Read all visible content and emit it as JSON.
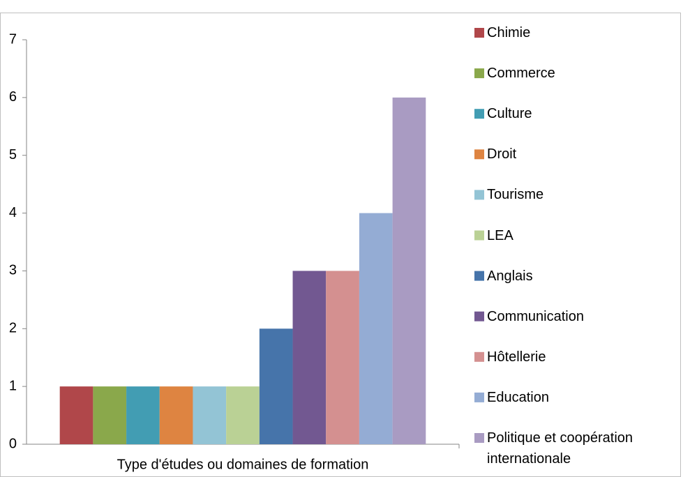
{
  "chart_data": {
    "type": "bar",
    "categories": [
      "Type d'études ou domaines de formation"
    ],
    "series": [
      {
        "name": "Chimie",
        "color": "#b0474a",
        "values": [
          1
        ]
      },
      {
        "name": "Commerce",
        "color": "#8aa84b",
        "values": [
          1
        ]
      },
      {
        "name": "Culture",
        "color": "#429db3",
        "values": [
          1
        ]
      },
      {
        "name": "Droit",
        "color": "#de8441",
        "values": [
          1
        ]
      },
      {
        "name": "Tourisme",
        "color": "#93c4d5",
        "values": [
          1
        ]
      },
      {
        "name": "LEA",
        "color": "#bad195",
        "values": [
          1
        ]
      },
      {
        "name": "Anglais",
        "color": "#4674aa",
        "values": [
          2
        ]
      },
      {
        "name": "Communication",
        "color": "#725891",
        "values": [
          3
        ]
      },
      {
        "name": "Hôtellerie",
        "color": "#d49090",
        "values": [
          3
        ]
      },
      {
        "name": "Education",
        "color": "#94acd4",
        "values": [
          4
        ]
      },
      {
        "name": "Politique et coopération internationale",
        "color": "#a99bc2",
        "values": [
          6
        ]
      }
    ],
    "ylim": [
      0,
      7
    ],
    "yticks": [
      0,
      1,
      2,
      3,
      4,
      5,
      6,
      7
    ],
    "grid": false,
    "legend": "right"
  }
}
